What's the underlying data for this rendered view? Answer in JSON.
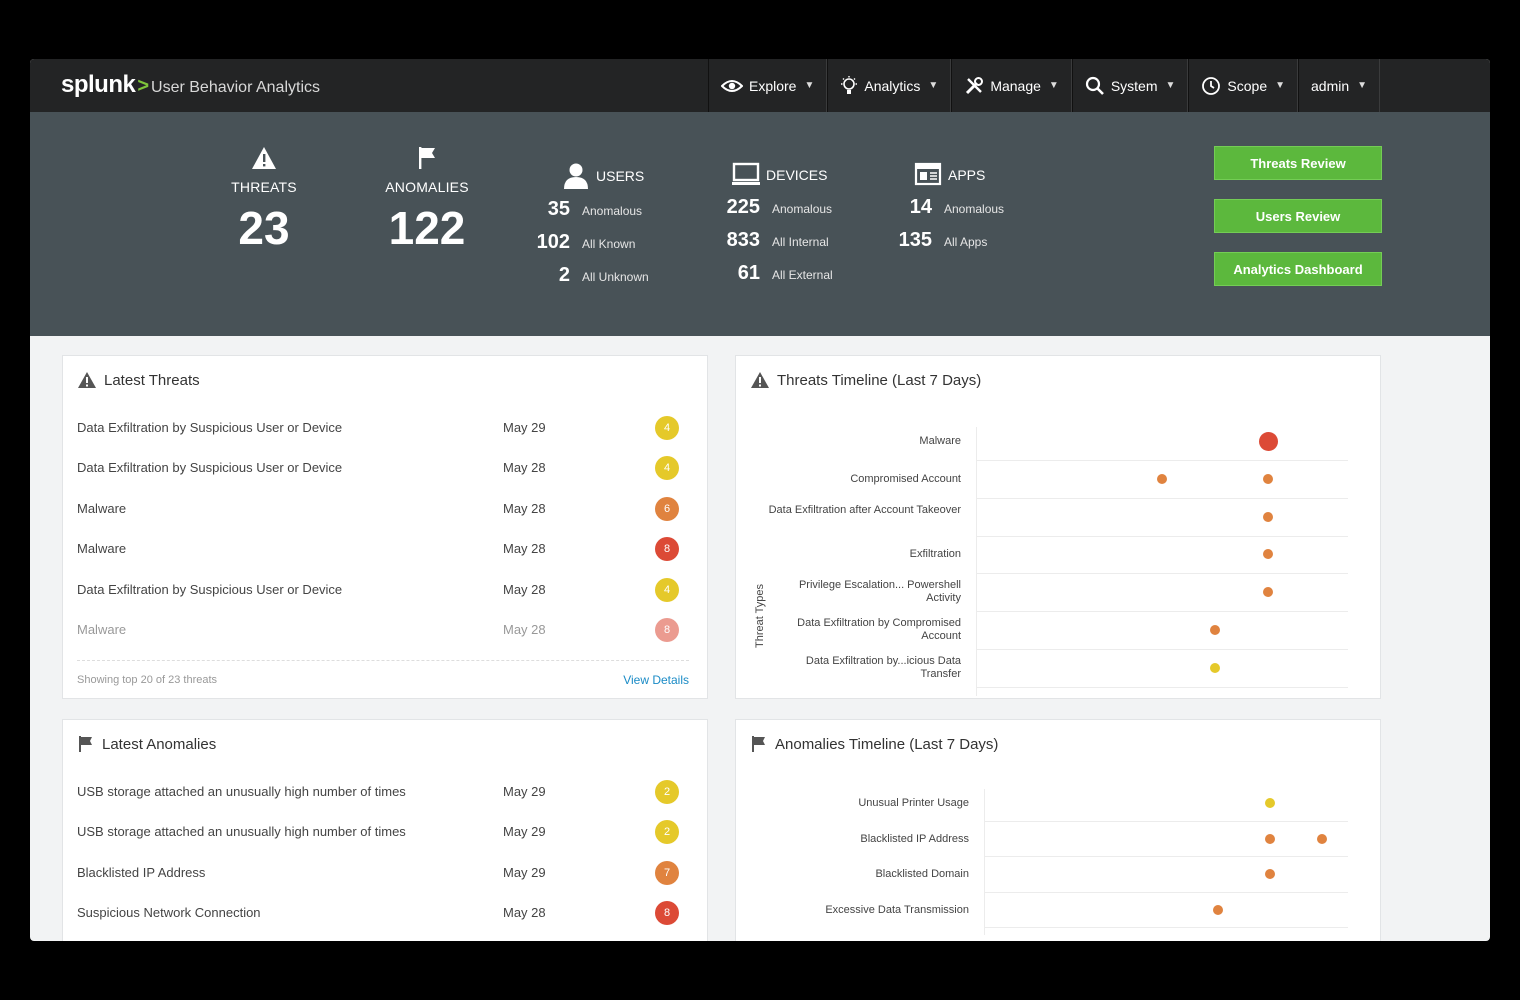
{
  "brand": {
    "logo": "splunk",
    "separator": ">",
    "product": "User Behavior Analytics"
  },
  "nav": [
    {
      "icon": "eye-icon",
      "label": "Explore"
    },
    {
      "icon": "lightbulb-icon",
      "label": "Analytics"
    },
    {
      "icon": "tools-icon",
      "label": "Manage"
    },
    {
      "icon": "search-icon",
      "label": "System"
    },
    {
      "icon": "clock-icon",
      "label": "Scope"
    },
    {
      "icon": "",
      "label": "admin"
    }
  ],
  "summary": {
    "threats": {
      "label": "THREATS",
      "value": "23",
      "icon": "warning-icon"
    },
    "anomalies": {
      "label": "ANOMALIES",
      "value": "122",
      "icon": "flag-icon"
    },
    "users": {
      "label": "USERS",
      "icon": "user-icon",
      "rows": [
        {
          "n": "35",
          "t": "Anomalous"
        },
        {
          "n": "102",
          "t": "All Known"
        },
        {
          "n": "2",
          "t": "All Unknown"
        }
      ]
    },
    "devices": {
      "label": "DEVICES",
      "icon": "monitor-icon",
      "rows": [
        {
          "n": "225",
          "t": "Anomalous"
        },
        {
          "n": "833",
          "t": "All Internal"
        },
        {
          "n": "61",
          "t": "All External"
        }
      ]
    },
    "apps": {
      "label": "APPS",
      "icon": "app-window-icon",
      "rows": [
        {
          "n": "14",
          "t": "Anomalous"
        },
        {
          "n": "135",
          "t": "All Apps"
        }
      ]
    },
    "buttons": [
      "Threats Review",
      "Users Review",
      "Analytics Dashboard"
    ]
  },
  "latest_threats": {
    "title": "Latest Threats",
    "rows": [
      {
        "name": "Data Exfiltration by Suspicious User or Device",
        "date": "May 29",
        "score": "4",
        "color": "#e5c92a"
      },
      {
        "name": "Data Exfiltration by Suspicious User or Device",
        "date": "May 28",
        "score": "4",
        "color": "#e5c92a"
      },
      {
        "name": "Malware",
        "date": "May 28",
        "score": "6",
        "color": "#e0833f"
      },
      {
        "name": "Malware",
        "date": "May 28",
        "score": "8",
        "color": "#dc4a36"
      },
      {
        "name": "Data Exfiltration by Suspicious User or Device",
        "date": "May 28",
        "score": "4",
        "color": "#e5c92a"
      },
      {
        "name": "Malware",
        "date": "May 28",
        "score": "8",
        "color": "#dc4a36"
      }
    ],
    "footer_summary": "Showing top 20 of 23 threats",
    "footer_link": "View Details"
  },
  "threats_timeline": {
    "title": "Threats Timeline (Last 7 Days)",
    "axis_title": "Threat Types",
    "categories": [
      "Malware",
      "Compromised Account",
      "Data Exfiltration after Account Takeover",
      "Exfiltration",
      "Privilege Escalation... Powershell Activity",
      "Data Exfiltration by Compromised Account",
      "Data Exfiltration by...icious Data Transfer"
    ],
    "points": [
      {
        "cat": 0,
        "day": 6,
        "size": "large",
        "color": "#dc4a36"
      },
      {
        "cat": 1,
        "day": 4,
        "size": "small",
        "color": "#e0833f"
      },
      {
        "cat": 1,
        "day": 6,
        "size": "small",
        "color": "#e0833f"
      },
      {
        "cat": 2,
        "day": 6,
        "size": "small",
        "color": "#e0833f"
      },
      {
        "cat": 3,
        "day": 6,
        "size": "small",
        "color": "#e0833f"
      },
      {
        "cat": 4,
        "day": 6,
        "size": "small",
        "color": "#e0833f"
      },
      {
        "cat": 5,
        "day": 5,
        "size": "small",
        "color": "#e0833f"
      },
      {
        "cat": 6,
        "day": 5,
        "size": "small",
        "color": "#e5c92a"
      }
    ]
  },
  "latest_anomalies": {
    "title": "Latest Anomalies",
    "rows": [
      {
        "name": "USB storage attached an unusually high number of times",
        "date": "May 29",
        "score": "2",
        "color": "#e5c92a"
      },
      {
        "name": "USB storage attached an unusually high number of times",
        "date": "May 29",
        "score": "2",
        "color": "#e5c92a"
      },
      {
        "name": "Blacklisted IP Address",
        "date": "May 29",
        "score": "7",
        "color": "#e0833f"
      },
      {
        "name": "Suspicious Network Connection",
        "date": "May 28",
        "score": "8",
        "color": "#dc4a36"
      }
    ]
  },
  "anomalies_timeline": {
    "title": "Anomalies Timeline (Last 7 Days)",
    "categories": [
      "Unusual Printer Usage",
      "Blacklisted IP Address",
      "Blacklisted Domain",
      "Excessive Data Transmission"
    ],
    "points": [
      {
        "cat": 0,
        "day": 6,
        "color": "#e5c92a"
      },
      {
        "cat": 1,
        "day": 6,
        "color": "#e0833f"
      },
      {
        "cat": 1,
        "day": 7,
        "color": "#e0833f"
      },
      {
        "cat": 2,
        "day": 6,
        "color": "#e0833f"
      },
      {
        "cat": 3,
        "day": 5,
        "color": "#e0833f"
      }
    ]
  }
}
